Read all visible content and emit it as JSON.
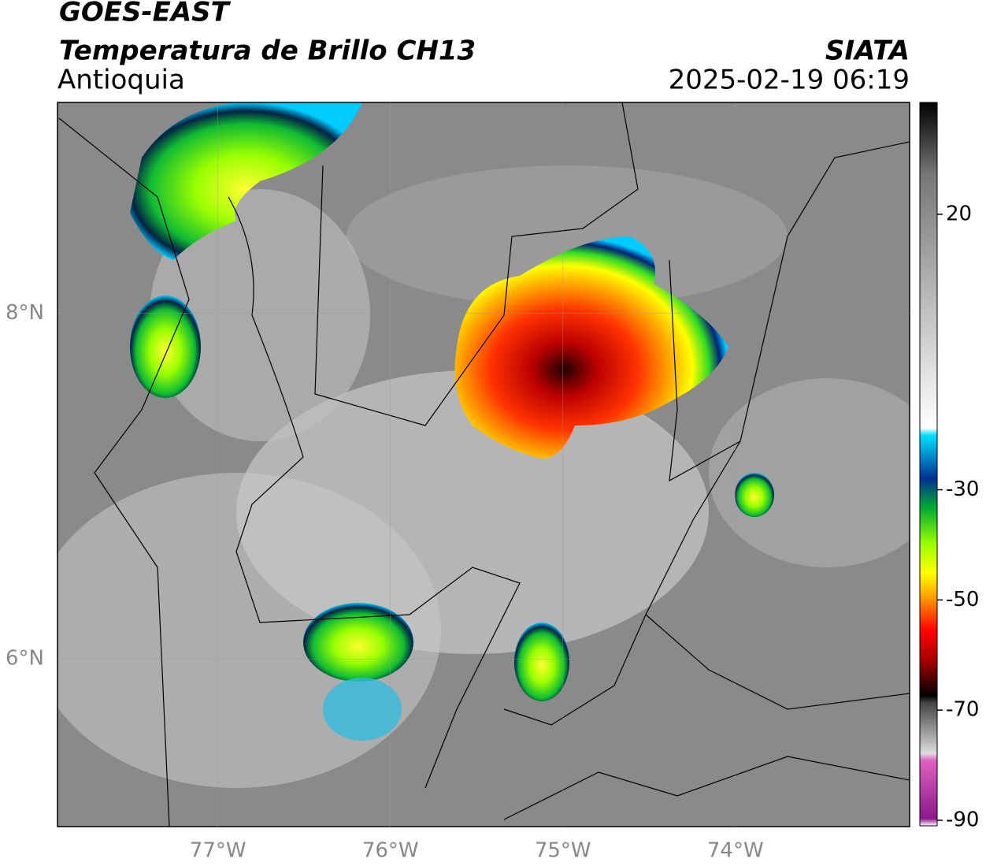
{
  "header": {
    "title": "GOES-EAST",
    "subtitle": "Temperatura de Brillo CH13",
    "region": "Antioquia",
    "source": "SIATA",
    "timestamp": "2025-02-19 06:19"
  },
  "map": {
    "xlim": [
      -77.93,
      -72.99
    ],
    "ylim": [
      5.03,
      9.22
    ],
    "xticks": [
      {
        "value": -77,
        "label": "77°W"
      },
      {
        "value": -76,
        "label": "76°W"
      },
      {
        "value": -75,
        "label": "75°W"
      },
      {
        "value": -74,
        "label": "74°W"
      }
    ],
    "yticks": [
      {
        "value": 8,
        "label": "8°N"
      },
      {
        "value": 6,
        "label": "6°N"
      }
    ]
  },
  "colorbar": {
    "range": [
      -91,
      40.3
    ],
    "ticks": [
      20,
      -30,
      -50,
      -70,
      -90
    ]
  }
}
